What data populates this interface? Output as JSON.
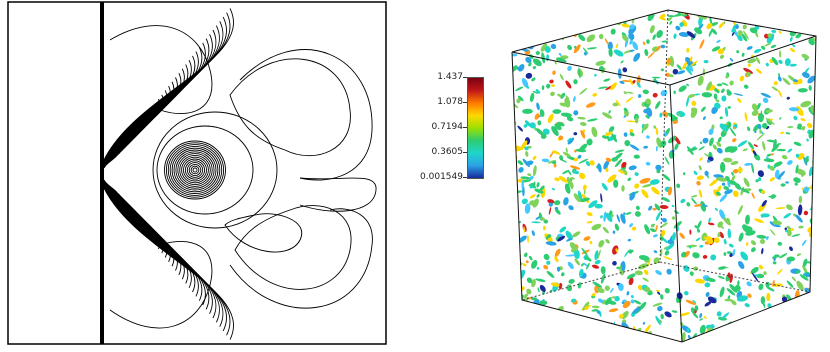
{
  "colorbar": {
    "ticks": [
      "1.437",
      "1.078",
      "0.7194",
      "0.3605",
      "0.001549"
    ],
    "colors": [
      "#7a0010",
      "#c01818",
      "#ff7a00",
      "#ffd700",
      "#9be000",
      "#2ecc71",
      "#1fd6c8",
      "#2aa3e6",
      "#1a2a9a"
    ]
  },
  "contour_panel": {
    "description_icon": "contour-plot-icon"
  },
  "cube_panel": {
    "description_icon": "isosurface-cube-icon"
  }
}
